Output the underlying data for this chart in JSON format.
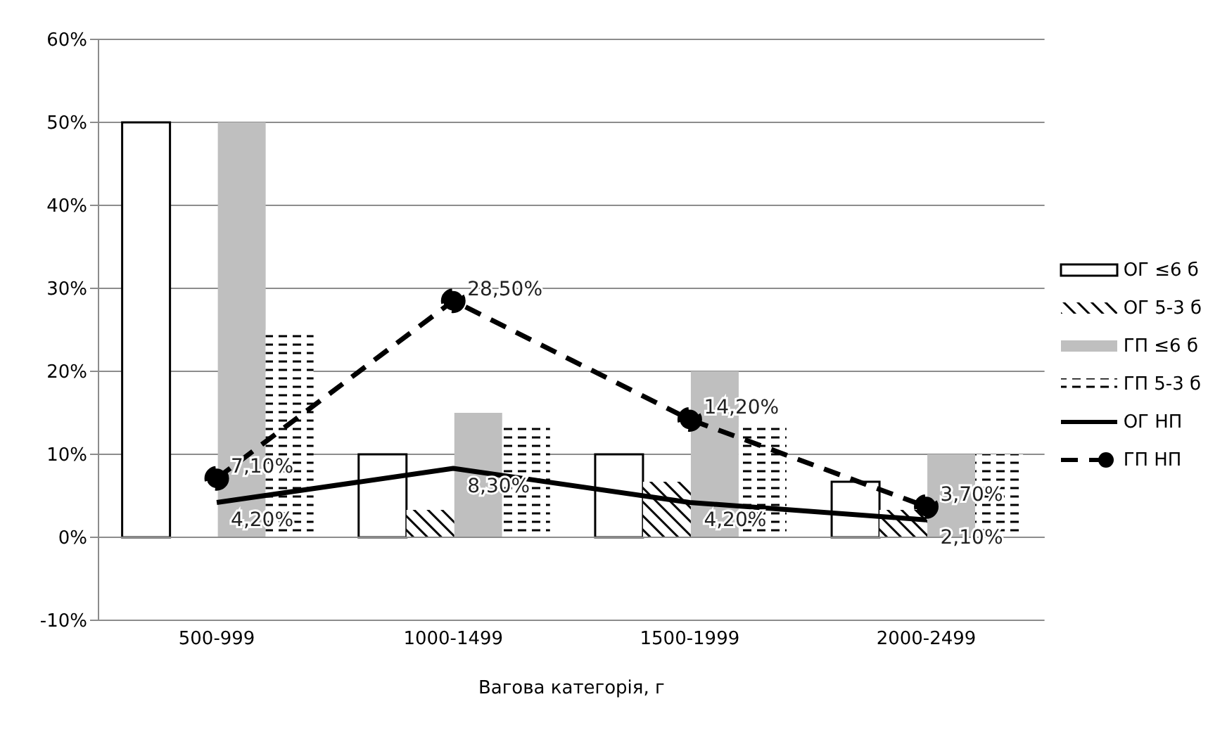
{
  "chart_data": {
    "type": "bar",
    "xlabel": "Вагова категорія, г",
    "categories": [
      "500-999",
      "1000-1499",
      "1500-1999",
      "2000-2499"
    ],
    "series": [
      {
        "name": "ОГ  ≤6 б",
        "color": "#000000",
        "values": [
          50,
          10,
          10,
          6.7
        ]
      },
      {
        "name": "ОГ 5-3 б",
        "color": "#000000",
        "values": [
          0,
          3.3,
          6.7,
          3.3
        ]
      },
      {
        "name": "ГП ≤6 б",
        "color": "#bfbfbf",
        "values": [
          50,
          15,
          20,
          10
        ]
      },
      {
        "name": "ГП 5-3 б",
        "color": "#000000",
        "values": [
          25,
          13.3,
          13.3,
          10
        ]
      },
      {
        "name": "ОГ НП",
        "type": "line",
        "color": "#000000",
        "line_style": "solid",
        "marker": "none",
        "values": [
          4.2,
          8.3,
          4.2,
          2.1
        ],
        "value_labels": [
          "4,20%",
          "8,30%",
          "4,20%",
          "2,10%"
        ]
      },
      {
        "name": "ГП НП",
        "type": "line",
        "color": "#000000",
        "line_style": "dashed",
        "marker": "circle",
        "values": [
          7.1,
          28.5,
          14.2,
          3.7
        ],
        "value_labels": [
          "7,10%",
          "28,50%",
          "14,20%",
          "3,70%"
        ]
      }
    ],
    "ylim": [
      -10,
      60
    ],
    "yticks": [
      {
        "value": -10,
        "label": "-10%"
      },
      {
        "value": 0,
        "label": "0%"
      },
      {
        "value": 10,
        "label": "10%"
      },
      {
        "value": 20,
        "label": "20%"
      },
      {
        "value": 30,
        "label": "30%"
      },
      {
        "value": 40,
        "label": "40%"
      },
      {
        "value": 50,
        "label": "50%"
      },
      {
        "value": 60,
        "label": "60%"
      }
    ],
    "grid": "y",
    "legend": "right"
  }
}
